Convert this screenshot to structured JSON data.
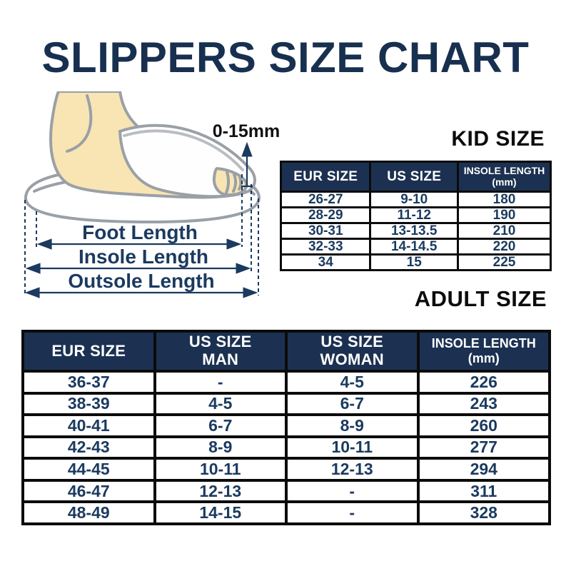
{
  "title": "SLIPPERS SIZE CHART",
  "diagram": {
    "offset_label": "0-15mm",
    "foot_length_label": "Foot Length",
    "insole_length_label": "Insole Length",
    "outsole_length_label": "Outsole Length"
  },
  "kid_section": {
    "heading": "KID SIZE",
    "table": {
      "headers": [
        {
          "lines": [
            "EUR SIZE"
          ],
          "small": false
        },
        {
          "lines": [
            "US SIZE"
          ],
          "small": false
        },
        {
          "lines": [
            "INSOLE LENGTH",
            "(mm)"
          ],
          "small": true
        }
      ],
      "rows": [
        [
          "26-27",
          "9-10",
          "180"
        ],
        [
          "28-29",
          "11-12",
          "190"
        ],
        [
          "30-31",
          "13-13.5",
          "210"
        ],
        [
          "32-33",
          "14-14.5",
          "220"
        ],
        [
          "34",
          "15",
          "225"
        ]
      ]
    }
  },
  "adult_section": {
    "heading": "ADULT SIZE",
    "table": {
      "headers": [
        {
          "lines": [
            "EUR SIZE"
          ],
          "small": false
        },
        {
          "lines": [
            "US SIZE",
            "MAN"
          ],
          "small": false
        },
        {
          "lines": [
            "US SIZE",
            "WOMAN"
          ],
          "small": false
        },
        {
          "lines": [
            "INSOLE LENGTH",
            "(mm)"
          ],
          "small": true
        }
      ],
      "rows": [
        [
          "36-37",
          "-",
          "4-5",
          "226"
        ],
        [
          "38-39",
          "4-5",
          "6-7",
          "243"
        ],
        [
          "40-41",
          "6-7",
          "8-9",
          "260"
        ],
        [
          "42-43",
          "8-9",
          "10-11",
          "277"
        ],
        [
          "44-45",
          "10-11",
          "12-13",
          "294"
        ],
        [
          "46-47",
          "12-13",
          "-",
          "311"
        ],
        [
          "48-49",
          "14-15",
          "-",
          "328"
        ]
      ]
    }
  },
  "colors": {
    "title_navy": "#18304f",
    "table_header_bg": "#1c3151",
    "cell_text_navy": "#1b3a5f",
    "heading_black": "#0c0c0c",
    "border_black": "#0b0b0b",
    "foot_skin": "#f8e5b3",
    "outline_gray": "#9aa0a6"
  }
}
